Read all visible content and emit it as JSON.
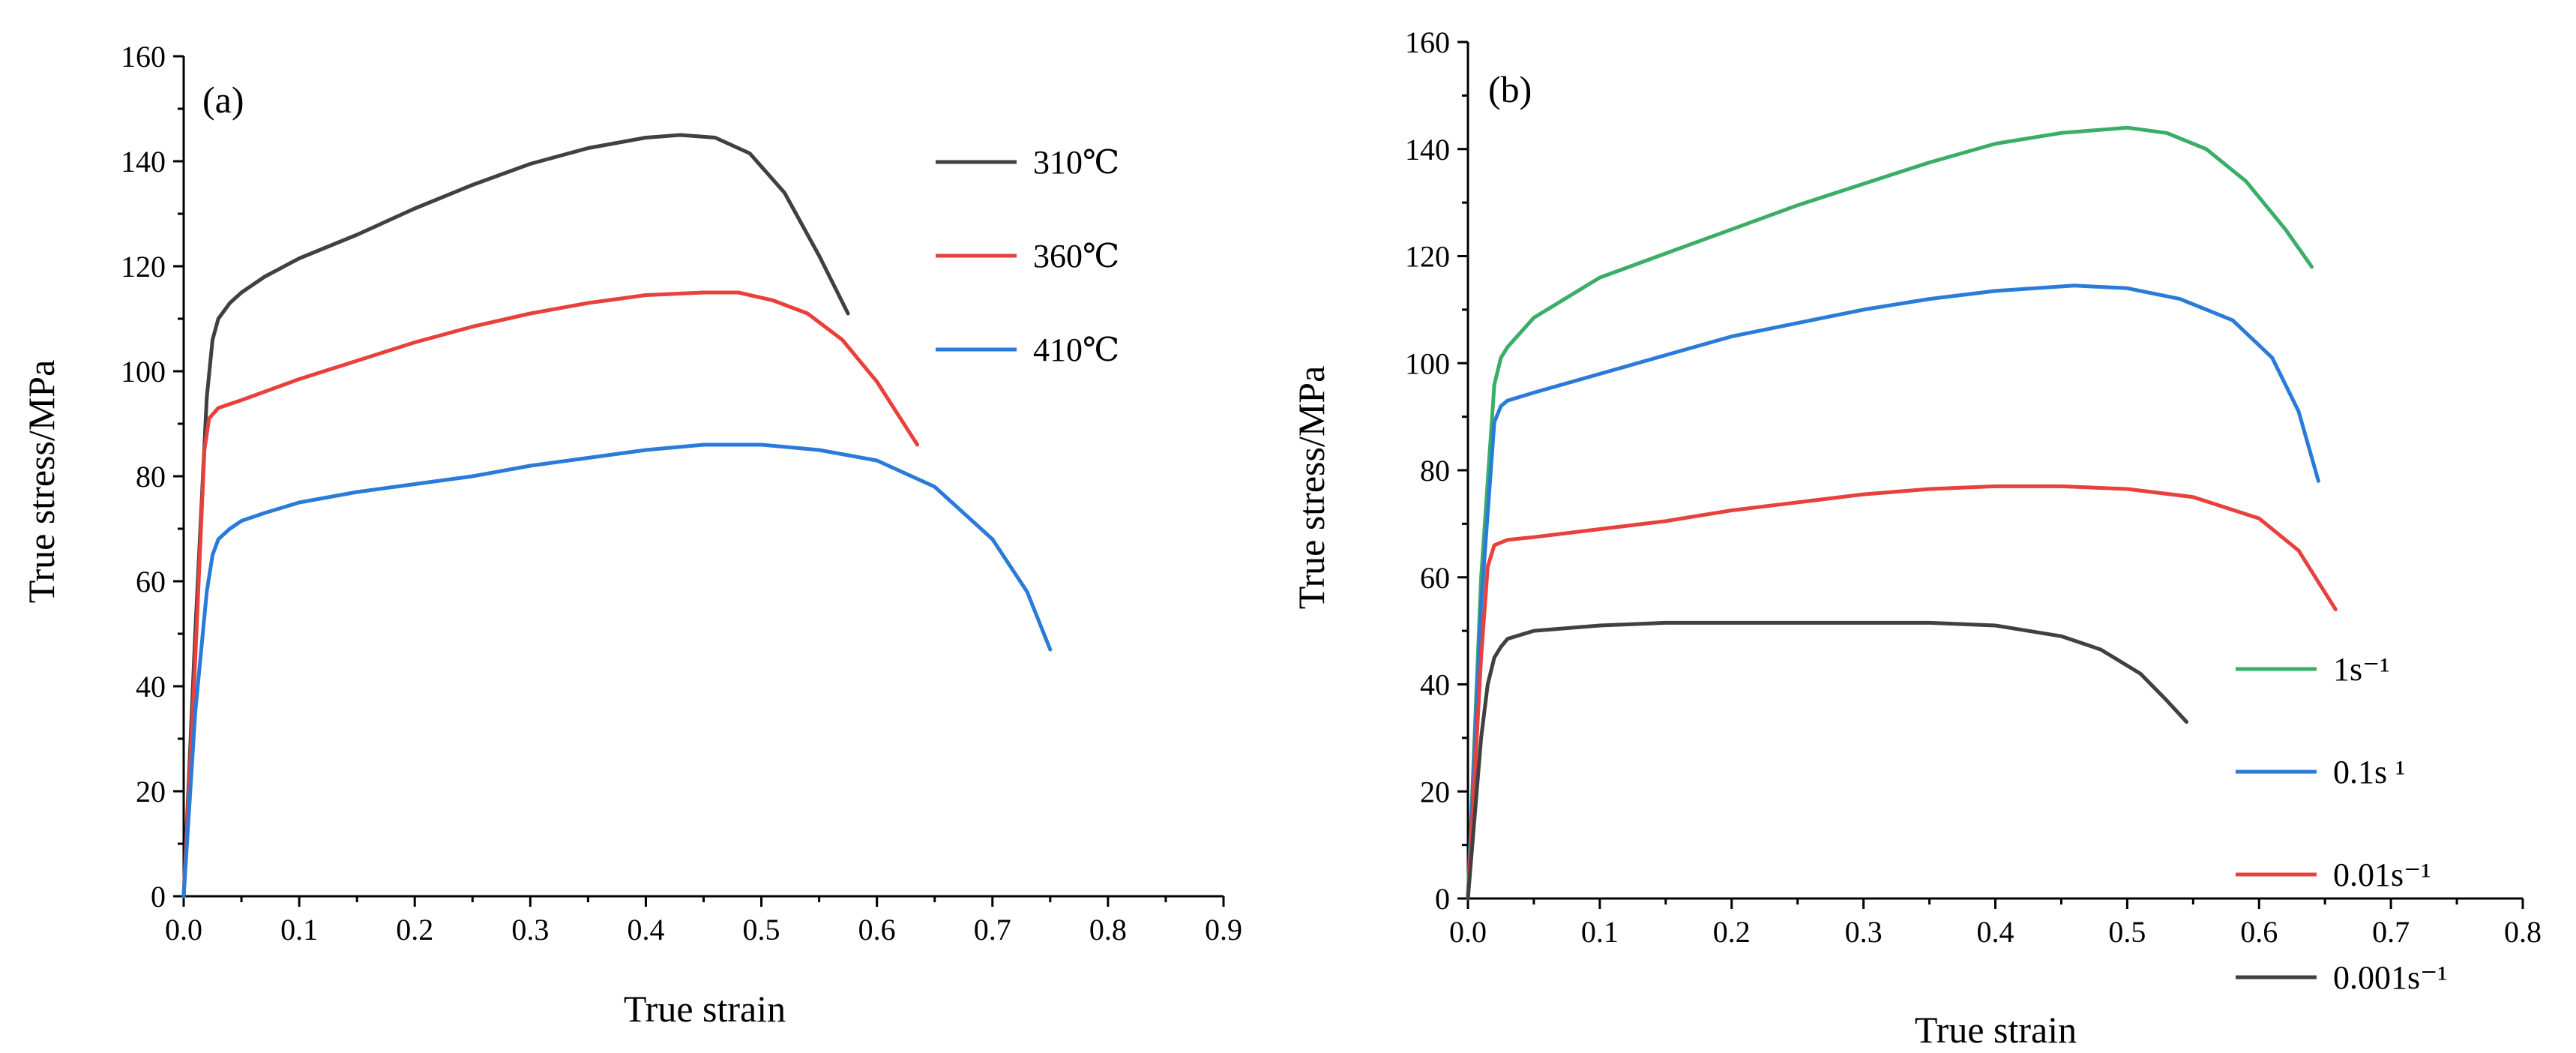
{
  "chart_data": [
    {
      "type": "line",
      "panel_label": "(a)",
      "xlabel": "True strain",
      "ylabel": "True stress/MPa",
      "xlim": [
        0,
        0.9
      ],
      "ylim": [
        0,
        160
      ],
      "x_ticks": [
        0.0,
        0.1,
        0.2,
        0.3,
        0.4,
        0.5,
        0.6,
        0.7,
        0.8,
        0.9
      ],
      "x_tick_labels": [
        "0.0",
        "0.1",
        "0.2",
        "0.3",
        "0.4",
        "0.5",
        "0.6",
        "0.7",
        "0.8",
        "0.9"
      ],
      "y_ticks": [
        0,
        20,
        40,
        60,
        80,
        100,
        120,
        140,
        160
      ],
      "y_tick_labels": [
        "0",
        "20",
        "40",
        "60",
        "80",
        "100",
        "120",
        "140",
        "160"
      ],
      "grid": false,
      "legend_position": "top-right",
      "series": [
        {
          "name": "310℃",
          "color": "#404040",
          "x": [
            0.0,
            0.01,
            0.02,
            0.025,
            0.03,
            0.04,
            0.05,
            0.07,
            0.1,
            0.15,
            0.2,
            0.25,
            0.3,
            0.35,
            0.4,
            0.43,
            0.46,
            0.49,
            0.52,
            0.55,
            0.575
          ],
          "y": [
            0,
            50,
            95,
            106,
            110,
            113,
            115,
            118,
            121.5,
            126,
            131,
            135.5,
            139.5,
            142.5,
            144.5,
            145,
            144.5,
            141.5,
            134,
            122,
            111
          ]
        },
        {
          "name": "360℃",
          "color": "#e8403c",
          "x": [
            0.0,
            0.01,
            0.018,
            0.022,
            0.03,
            0.05,
            0.1,
            0.15,
            0.2,
            0.25,
            0.3,
            0.35,
            0.4,
            0.45,
            0.48,
            0.51,
            0.54,
            0.57,
            0.6,
            0.635
          ],
          "y": [
            0,
            45,
            85,
            91,
            93,
            94.5,
            98.5,
            102,
            105.5,
            108.5,
            111,
            113,
            114.5,
            115,
            115,
            113.5,
            111,
            106,
            98,
            86
          ]
        },
        {
          "name": "410℃",
          "color": "#2a7bd8",
          "x": [
            0.0,
            0.01,
            0.02,
            0.025,
            0.03,
            0.04,
            0.05,
            0.07,
            0.1,
            0.15,
            0.2,
            0.25,
            0.3,
            0.35,
            0.4,
            0.45,
            0.5,
            0.55,
            0.6,
            0.65,
            0.7,
            0.73,
            0.75
          ],
          "y": [
            0,
            35,
            58,
            65,
            68,
            70,
            71.5,
            73,
            75,
            77,
            78.5,
            80,
            82,
            83.5,
            85,
            86,
            86,
            85,
            83,
            78,
            68,
            58,
            47
          ]
        }
      ]
    },
    {
      "type": "line",
      "panel_label": "(b)",
      "xlabel": "True strain",
      "ylabel": "True stress/MPa",
      "xlim": [
        0,
        0.8
      ],
      "ylim": [
        0,
        160
      ],
      "x_ticks": [
        0.0,
        0.1,
        0.2,
        0.3,
        0.4,
        0.5,
        0.6,
        0.7,
        0.8
      ],
      "x_tick_labels": [
        "0.0",
        "0.1",
        "0.2",
        "0.3",
        "0.4",
        "0.5",
        "0.6",
        "0.7",
        "0.8"
      ],
      "y_ticks": [
        0,
        20,
        40,
        60,
        80,
        100,
        120,
        140,
        160
      ],
      "y_tick_labels": [
        "0",
        "20",
        "40",
        "60",
        "80",
        "100",
        "120",
        "140",
        "160"
      ],
      "grid": false,
      "legend_position": "bottom-right",
      "series": [
        {
          "name": "1s⁻¹",
          "color": "#3aad66",
          "x": [
            0.0,
            0.01,
            0.02,
            0.025,
            0.03,
            0.05,
            0.1,
            0.15,
            0.2,
            0.25,
            0.3,
            0.35,
            0.4,
            0.45,
            0.5,
            0.53,
            0.56,
            0.59,
            0.62,
            0.64
          ],
          "y": [
            0,
            60,
            96,
            101,
            103,
            108.5,
            116,
            120.5,
            125,
            129.5,
            133.5,
            137.5,
            141,
            143,
            144,
            143,
            140,
            134,
            125,
            118
          ]
        },
        {
          "name": "0.1s ¹",
          "color": "#2a7bd8",
          "x": [
            0.0,
            0.01,
            0.02,
            0.025,
            0.03,
            0.05,
            0.1,
            0.15,
            0.2,
            0.25,
            0.3,
            0.35,
            0.4,
            0.46,
            0.5,
            0.54,
            0.58,
            0.61,
            0.63,
            0.645
          ],
          "y": [
            0,
            55,
            89,
            92,
            93,
            94.5,
            98,
            101.5,
            105,
            107.5,
            110,
            112,
            113.5,
            114.5,
            114,
            112,
            108,
            101,
            91,
            78
          ]
        },
        {
          "name": "0.01s⁻¹",
          "color": "#e8403c",
          "x": [
            0.0,
            0.01,
            0.015,
            0.02,
            0.03,
            0.05,
            0.1,
            0.15,
            0.2,
            0.25,
            0.3,
            0.35,
            0.4,
            0.45,
            0.5,
            0.55,
            0.6,
            0.63,
            0.658
          ],
          "y": [
            0,
            45,
            62,
            66,
            67,
            67.5,
            69,
            70.5,
            72.5,
            74,
            75.5,
            76.5,
            77,
            77,
            76.5,
            75,
            71,
            65,
            54
          ]
        },
        {
          "name": "0.001s⁻¹",
          "color": "#404040",
          "x": [
            0.0,
            0.01,
            0.015,
            0.02,
            0.025,
            0.03,
            0.05,
            0.1,
            0.15,
            0.2,
            0.25,
            0.3,
            0.35,
            0.4,
            0.45,
            0.48,
            0.51,
            0.53,
            0.545
          ],
          "y": [
            0,
            30,
            40,
            45,
            47,
            48.5,
            50,
            51,
            51.5,
            51.5,
            51.5,
            51.5,
            51.5,
            51,
            49,
            46.5,
            42,
            37,
            33
          ]
        }
      ]
    }
  ]
}
